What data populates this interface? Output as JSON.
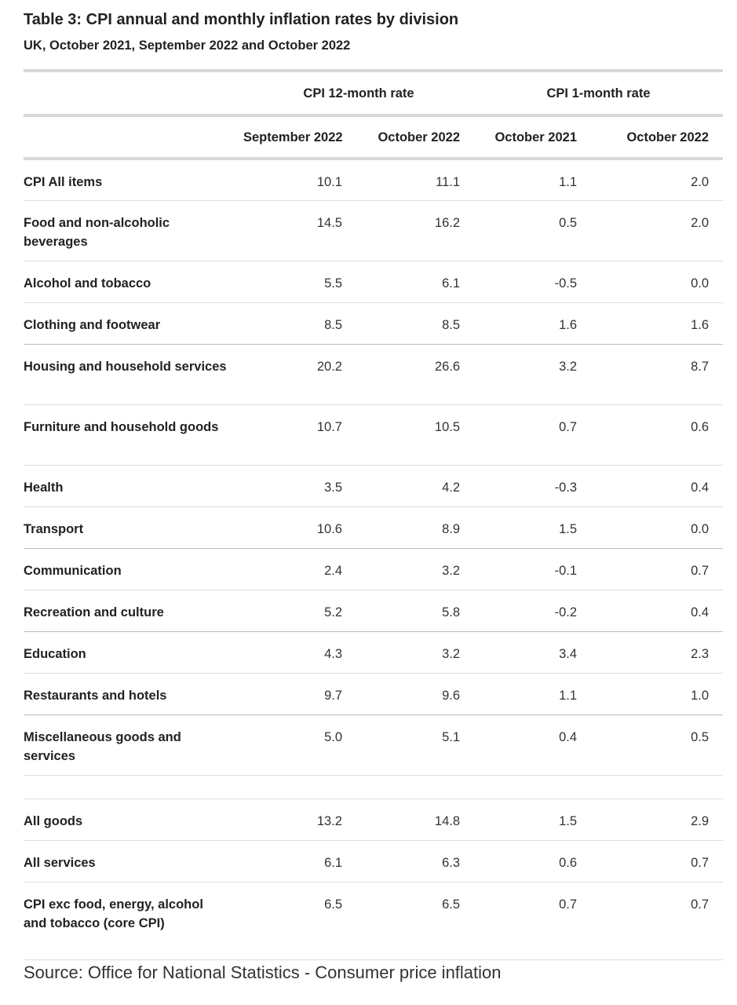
{
  "title": "Table 3: CPI annual and monthly inflation rates by division",
  "subtitle": "UK, October 2021, September 2022 and October 2022",
  "group_headers": {
    "annual": "CPI 12-month rate",
    "monthly": "CPI 1-month rate"
  },
  "column_headers": [
    "September 2022",
    "October 2022",
    "October 2021",
    "October 2022"
  ],
  "rows": [
    {
      "label": "CPI All items",
      "values": [
        "10.1",
        "11.1",
        "1.1",
        "2.0"
      ]
    },
    {
      "label": "Food and non-alcoholic beverages",
      "values": [
        "14.5",
        "16.2",
        "0.5",
        "2.0"
      ]
    },
    {
      "label": "Alcohol and tobacco",
      "values": [
        "5.5",
        "6.1",
        "-0.5",
        "0.0"
      ]
    },
    {
      "label": "Clothing and footwear",
      "values": [
        "8.5",
        "8.5",
        "1.6",
        "1.6"
      ]
    },
    {
      "label": "Housing and household services",
      "values": [
        "20.2",
        "26.6",
        "3.2",
        "8.7"
      ]
    },
    {
      "label": "Furniture and household goods",
      "values": [
        "10.7",
        "10.5",
        "0.7",
        "0.6"
      ]
    },
    {
      "label": "Health",
      "values": [
        "3.5",
        "4.2",
        "-0.3",
        "0.4"
      ]
    },
    {
      "label": "Transport",
      "values": [
        "10.6",
        "8.9",
        "1.5",
        "0.0"
      ]
    },
    {
      "label": "Communication",
      "values": [
        "2.4",
        "3.2",
        "-0.1",
        "0.7"
      ]
    },
    {
      "label": "Recreation and culture",
      "values": [
        "5.2",
        "5.8",
        "-0.2",
        "0.4"
      ]
    },
    {
      "label": "Education",
      "values": [
        "4.3",
        "3.2",
        "3.4",
        "2.3"
      ]
    },
    {
      "label": "Restaurants and hotels",
      "values": [
        "9.7",
        "9.6",
        "1.1",
        "1.0"
      ]
    },
    {
      "label": "Miscellaneous goods and services",
      "values": [
        "5.0",
        "5.1",
        "0.4",
        "0.5"
      ]
    },
    {
      "label": "All goods",
      "values": [
        "13.2",
        "14.8",
        "1.5",
        "2.9"
      ]
    },
    {
      "label": "All services",
      "values": [
        "6.1",
        "6.3",
        "0.6",
        "0.7"
      ]
    },
    {
      "label": "CPI exc food, energy, alcohol and tobacco (core CPI)",
      "values": [
        "6.5",
        "6.5",
        "0.7",
        "0.7"
      ]
    }
  ],
  "source": "Source: Office for National Statistics - Consumer price inflation"
}
